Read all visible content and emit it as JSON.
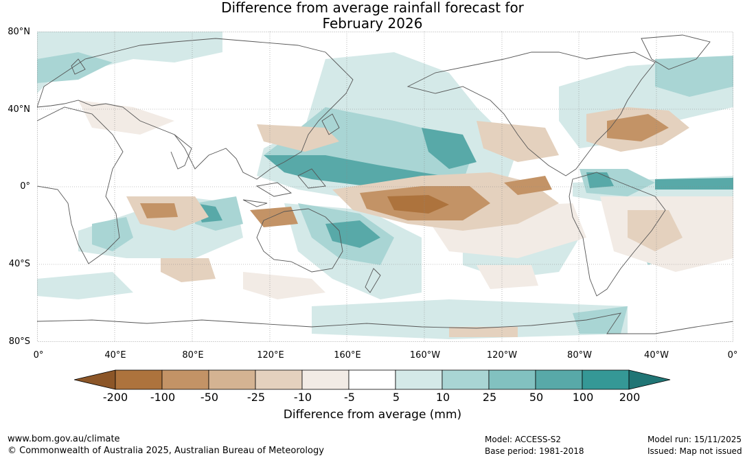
{
  "title": {
    "line1": "Difference from average rainfall forecast for",
    "line2": "February 2026"
  },
  "map": {
    "lat_labels": [
      "80°N",
      "40°N",
      "0°",
      "40°S",
      "80°S"
    ],
    "lon_labels": [
      "0°",
      "40°E",
      "80°E",
      "120°E",
      "160°E",
      "160°W",
      "120°W",
      "80°W",
      "40°W",
      "0°"
    ],
    "gridlines": true,
    "coastlines": true
  },
  "legend": {
    "title": "Difference from average (mm)",
    "ticks": [
      "-200",
      "-100",
      "-50",
      "-25",
      "-10",
      "-5",
      "5",
      "10",
      "25",
      "50",
      "100",
      "200"
    ],
    "colors": [
      "#8c5628",
      "#ad733d",
      "#c39366",
      "#d4b392",
      "#e4d1be",
      "#f2ebe5",
      "#ffffff",
      "#d4e9e8",
      "#a9d5d4",
      "#82c1c0",
      "#58a9a8",
      "#359896",
      "#207575"
    ]
  },
  "footer": {
    "website": "www.bom.gov.au/climate",
    "copyright": "© Commonwealth of Australia 2025, Australian Bureau of Meteorology",
    "model": "Model: ACCESS-S2",
    "base_period": "Base period: 1981-2018",
    "model_run": "Model run: 15/11/2025",
    "issued": "Issued: Map not issued"
  }
}
